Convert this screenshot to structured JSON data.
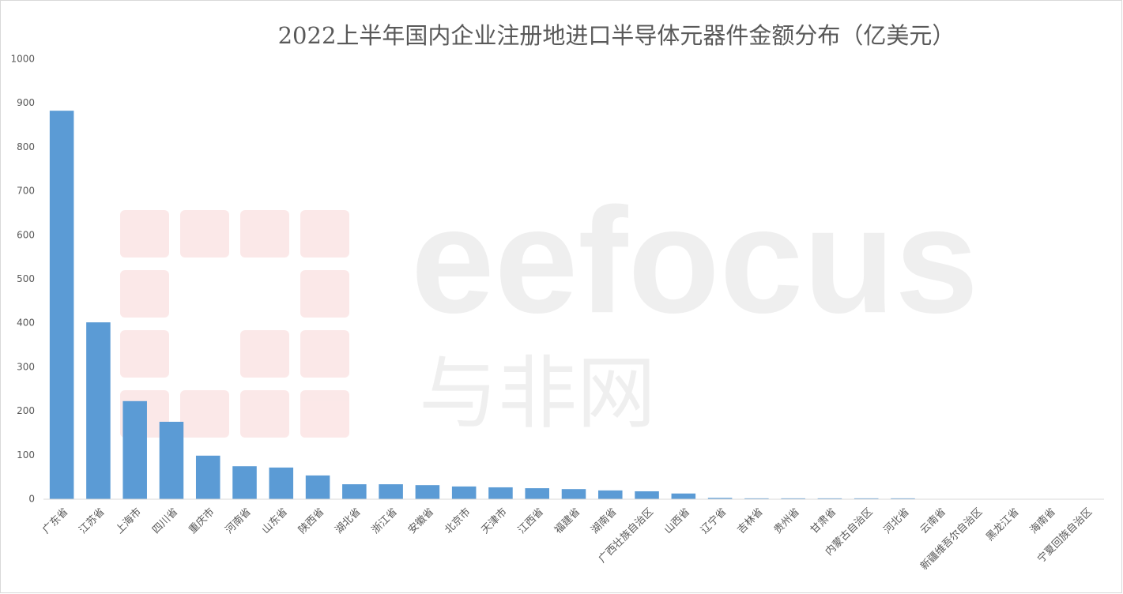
{
  "chart_data": {
    "type": "bar",
    "title": "2022上半年国内企业注册地进口半导体元器件金额分布（亿美元）",
    "watermark": {
      "logo": "eefocus",
      "text": "与非网"
    },
    "categories": [
      "广东省",
      "江苏省",
      "上海市",
      "四川省",
      "重庆市",
      "河南省",
      "山东省",
      "陕西省",
      "湖北省",
      "浙江省",
      "安徽省",
      "北京市",
      "天津市",
      "江西省",
      "福建省",
      "湖南省",
      "广西壮族自治区",
      "山西省",
      "辽宁省",
      "吉林省",
      "贵州省",
      "甘肃省",
      "内蒙古自治区",
      "河北省",
      "云南省",
      "新疆维吾尔自治区",
      "黑龙江省",
      "海南省",
      "宁夏回族自治区"
    ],
    "values": [
      883,
      402,
      223,
      176,
      99,
      75,
      72,
      54,
      34,
      34,
      32,
      29,
      27,
      25,
      23,
      20,
      18,
      13,
      3,
      2,
      2,
      2,
      2,
      2,
      0.5,
      0.3,
      0.2,
      0.1,
      0.1
    ],
    "color": "#5b9bd5",
    "ylim": [
      0,
      1000
    ],
    "yticks": [
      0,
      100,
      200,
      300,
      400,
      500,
      600,
      700,
      800,
      900,
      1000
    ],
    "grid": false
  }
}
